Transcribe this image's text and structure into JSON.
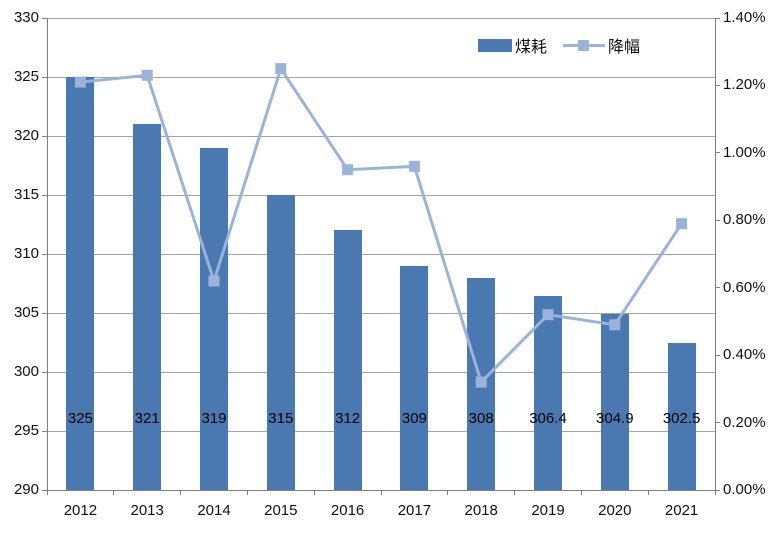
{
  "chart_data": {
    "type": "bar+line combo (dual axis)",
    "title": "",
    "categories": [
      "2012",
      "2013",
      "2014",
      "2015",
      "2016",
      "2017",
      "2018",
      "2019",
      "2020",
      "2021"
    ],
    "series": [
      {
        "name": "煤耗",
        "type": "bar",
        "axis": "left",
        "color": "#4a79b2",
        "values": [
          325,
          321,
          319,
          315,
          312,
          309,
          308,
          306.4,
          304.9,
          302.5
        ],
        "data_labels": [
          "325",
          "321",
          "319",
          "315",
          "312",
          "309",
          "308",
          "306.4",
          "304.9",
          "302.5"
        ]
      },
      {
        "name": "降幅",
        "type": "line",
        "axis": "right",
        "marker": "square",
        "color": "#9bb3d8",
        "values_pct": [
          1.21,
          1.23,
          0.62,
          1.25,
          0.95,
          0.96,
          0.32,
          0.52,
          0.49,
          0.79
        ]
      }
    ],
    "left_axis": {
      "min": 290,
      "max": 330,
      "step": 5,
      "tick_values": [
        290,
        295,
        300,
        305,
        310,
        315,
        320,
        325,
        330
      ],
      "tick_labels": [
        "290",
        "295",
        "300",
        "305",
        "310",
        "315",
        "320",
        "325",
        "330"
      ]
    },
    "right_axis": {
      "min": 0,
      "max": 1.4,
      "step": 0.2,
      "tick_values": [
        0,
        0.2,
        0.4,
        0.6,
        0.8,
        1.0,
        1.2,
        1.4
      ],
      "tick_labels": [
        "0.00%",
        "0.20%",
        "0.40%",
        "0.60%",
        "0.80%",
        "1.00%",
        "1.20%",
        "1.40%"
      ]
    },
    "legend_position": "top",
    "grid": true
  },
  "colors": {
    "bar": "#4a79b2",
    "line": "#9bb3d8",
    "gridline": "#a3a3a3",
    "axis": "#7f7f7f",
    "text": "#111111",
    "background": "#ffffff"
  }
}
